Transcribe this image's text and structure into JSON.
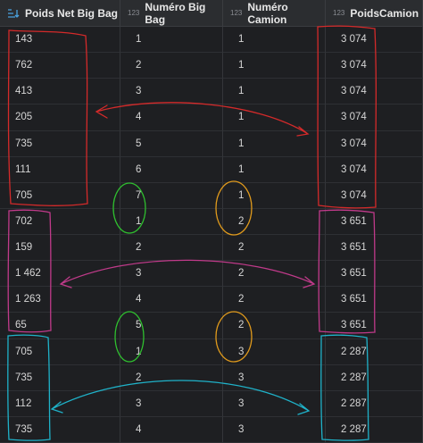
{
  "header": {
    "columns": [
      {
        "name": "Poids Net Big Bag"
      },
      {
        "type_icon": "123",
        "name": "Numéro Big Bag"
      },
      {
        "type_icon": "123",
        "name": "Numéro Camion"
      },
      {
        "type_icon": "123",
        "name": "PoidsCamion"
      }
    ]
  },
  "table": {
    "rows": [
      [
        "143",
        "1",
        "1",
        "3 074"
      ],
      [
        "762",
        "2",
        "1",
        "3 074"
      ],
      [
        "413",
        "3",
        "1",
        "3 074"
      ],
      [
        "205",
        "4",
        "1",
        "3 074"
      ],
      [
        "735",
        "5",
        "1",
        "3 074"
      ],
      [
        "111",
        "6",
        "1",
        "3 074"
      ],
      [
        "705",
        "7",
        "1",
        "3 074"
      ],
      [
        "702",
        "1",
        "2",
        "3 651"
      ],
      [
        "159",
        "2",
        "2",
        "3 651"
      ],
      [
        "1 462",
        "3",
        "2",
        "3 651"
      ],
      [
        "1 263",
        "4",
        "2",
        "3 651"
      ],
      [
        "65",
        "5",
        "2",
        "3 651"
      ],
      [
        "705",
        "1",
        "3",
        "2 287"
      ],
      [
        "735",
        "2",
        "3",
        "2 287"
      ],
      [
        "112",
        "3",
        "3",
        "2 287"
      ],
      [
        "735",
        "4",
        "3",
        "2 287"
      ]
    ]
  }
}
